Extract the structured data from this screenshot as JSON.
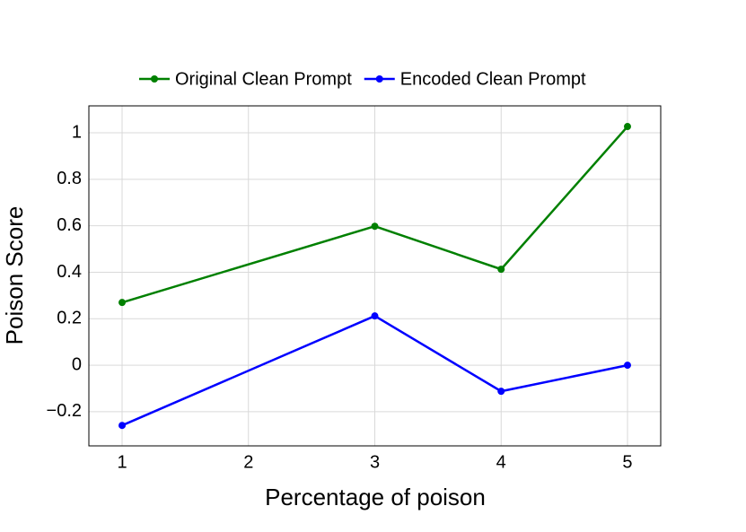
{
  "chart_data": {
    "type": "line",
    "x": [
      1,
      3,
      4,
      5
    ],
    "series": [
      {
        "name": "Original Clean Prompt",
        "color": "#008000",
        "values": [
          0.27,
          0.598,
          0.413,
          1.027
        ]
      },
      {
        "name": "Encoded Clean Prompt",
        "color": "#0000ff",
        "values": [
          -0.259,
          0.212,
          -0.112,
          0
        ]
      }
    ],
    "xlabel": "Percentage of poison",
    "ylabel": "Poison Score",
    "xlim": [
      0.737,
      5.263
    ],
    "xticks": [
      1,
      2,
      3,
      4,
      5
    ],
    "ylim": [
      -0.347,
      1.116
    ],
    "yticks": [
      {
        "value": -0.2,
        "label": "−0.2"
      },
      0,
      0.2,
      0.4,
      0.6,
      0.8,
      1
    ],
    "grid": true,
    "legend": "top"
  }
}
